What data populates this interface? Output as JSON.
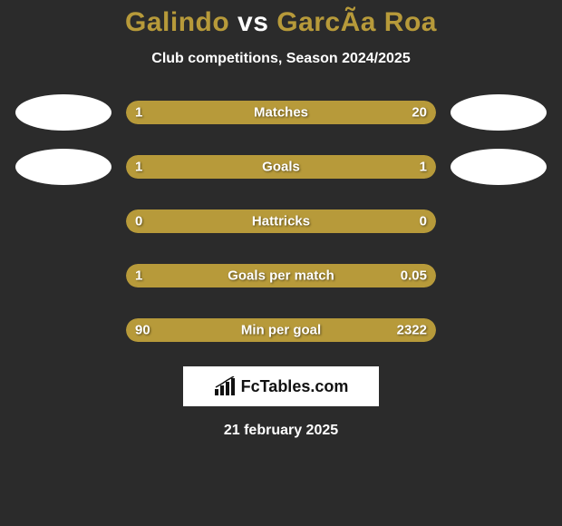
{
  "title": {
    "player1": "Galindo",
    "vs": "vs",
    "player2": "GarcÃ­a Roa"
  },
  "subtitle": "Club competitions, Season 2024/2025",
  "colors": {
    "left": "#b79a3a",
    "right": "#b79a3a",
    "background": "#2b2b2b"
  },
  "stats": [
    {
      "label": "Matches",
      "left_value": "1",
      "right_value": "20",
      "left_raw": 1,
      "right_raw": 20,
      "left_pct": 20,
      "right_pct": 80,
      "show_left_avatar": true,
      "show_right_avatar": true
    },
    {
      "label": "Goals",
      "left_value": "1",
      "right_value": "1",
      "left_raw": 1,
      "right_raw": 1,
      "left_pct": 50,
      "right_pct": 50,
      "show_left_avatar": true,
      "show_right_avatar": true
    },
    {
      "label": "Hattricks",
      "left_value": "0",
      "right_value": "0",
      "left_raw": 0,
      "right_raw": 0,
      "left_pct": 100,
      "right_pct": 0,
      "show_left_avatar": false,
      "show_right_avatar": false
    },
    {
      "label": "Goals per match",
      "left_value": "1",
      "right_value": "0.05",
      "left_raw": 1,
      "right_raw": 0.05,
      "left_pct": 95,
      "right_pct": 5,
      "show_left_avatar": false,
      "show_right_avatar": false
    },
    {
      "label": "Min per goal",
      "left_value": "90",
      "right_value": "2322",
      "left_raw": 90,
      "right_raw": 2322,
      "left_pct": 100,
      "right_pct": 0,
      "show_left_avatar": false,
      "show_right_avatar": false
    }
  ],
  "logo": {
    "text": "FcTables.com"
  },
  "date": "21 february 2025"
}
